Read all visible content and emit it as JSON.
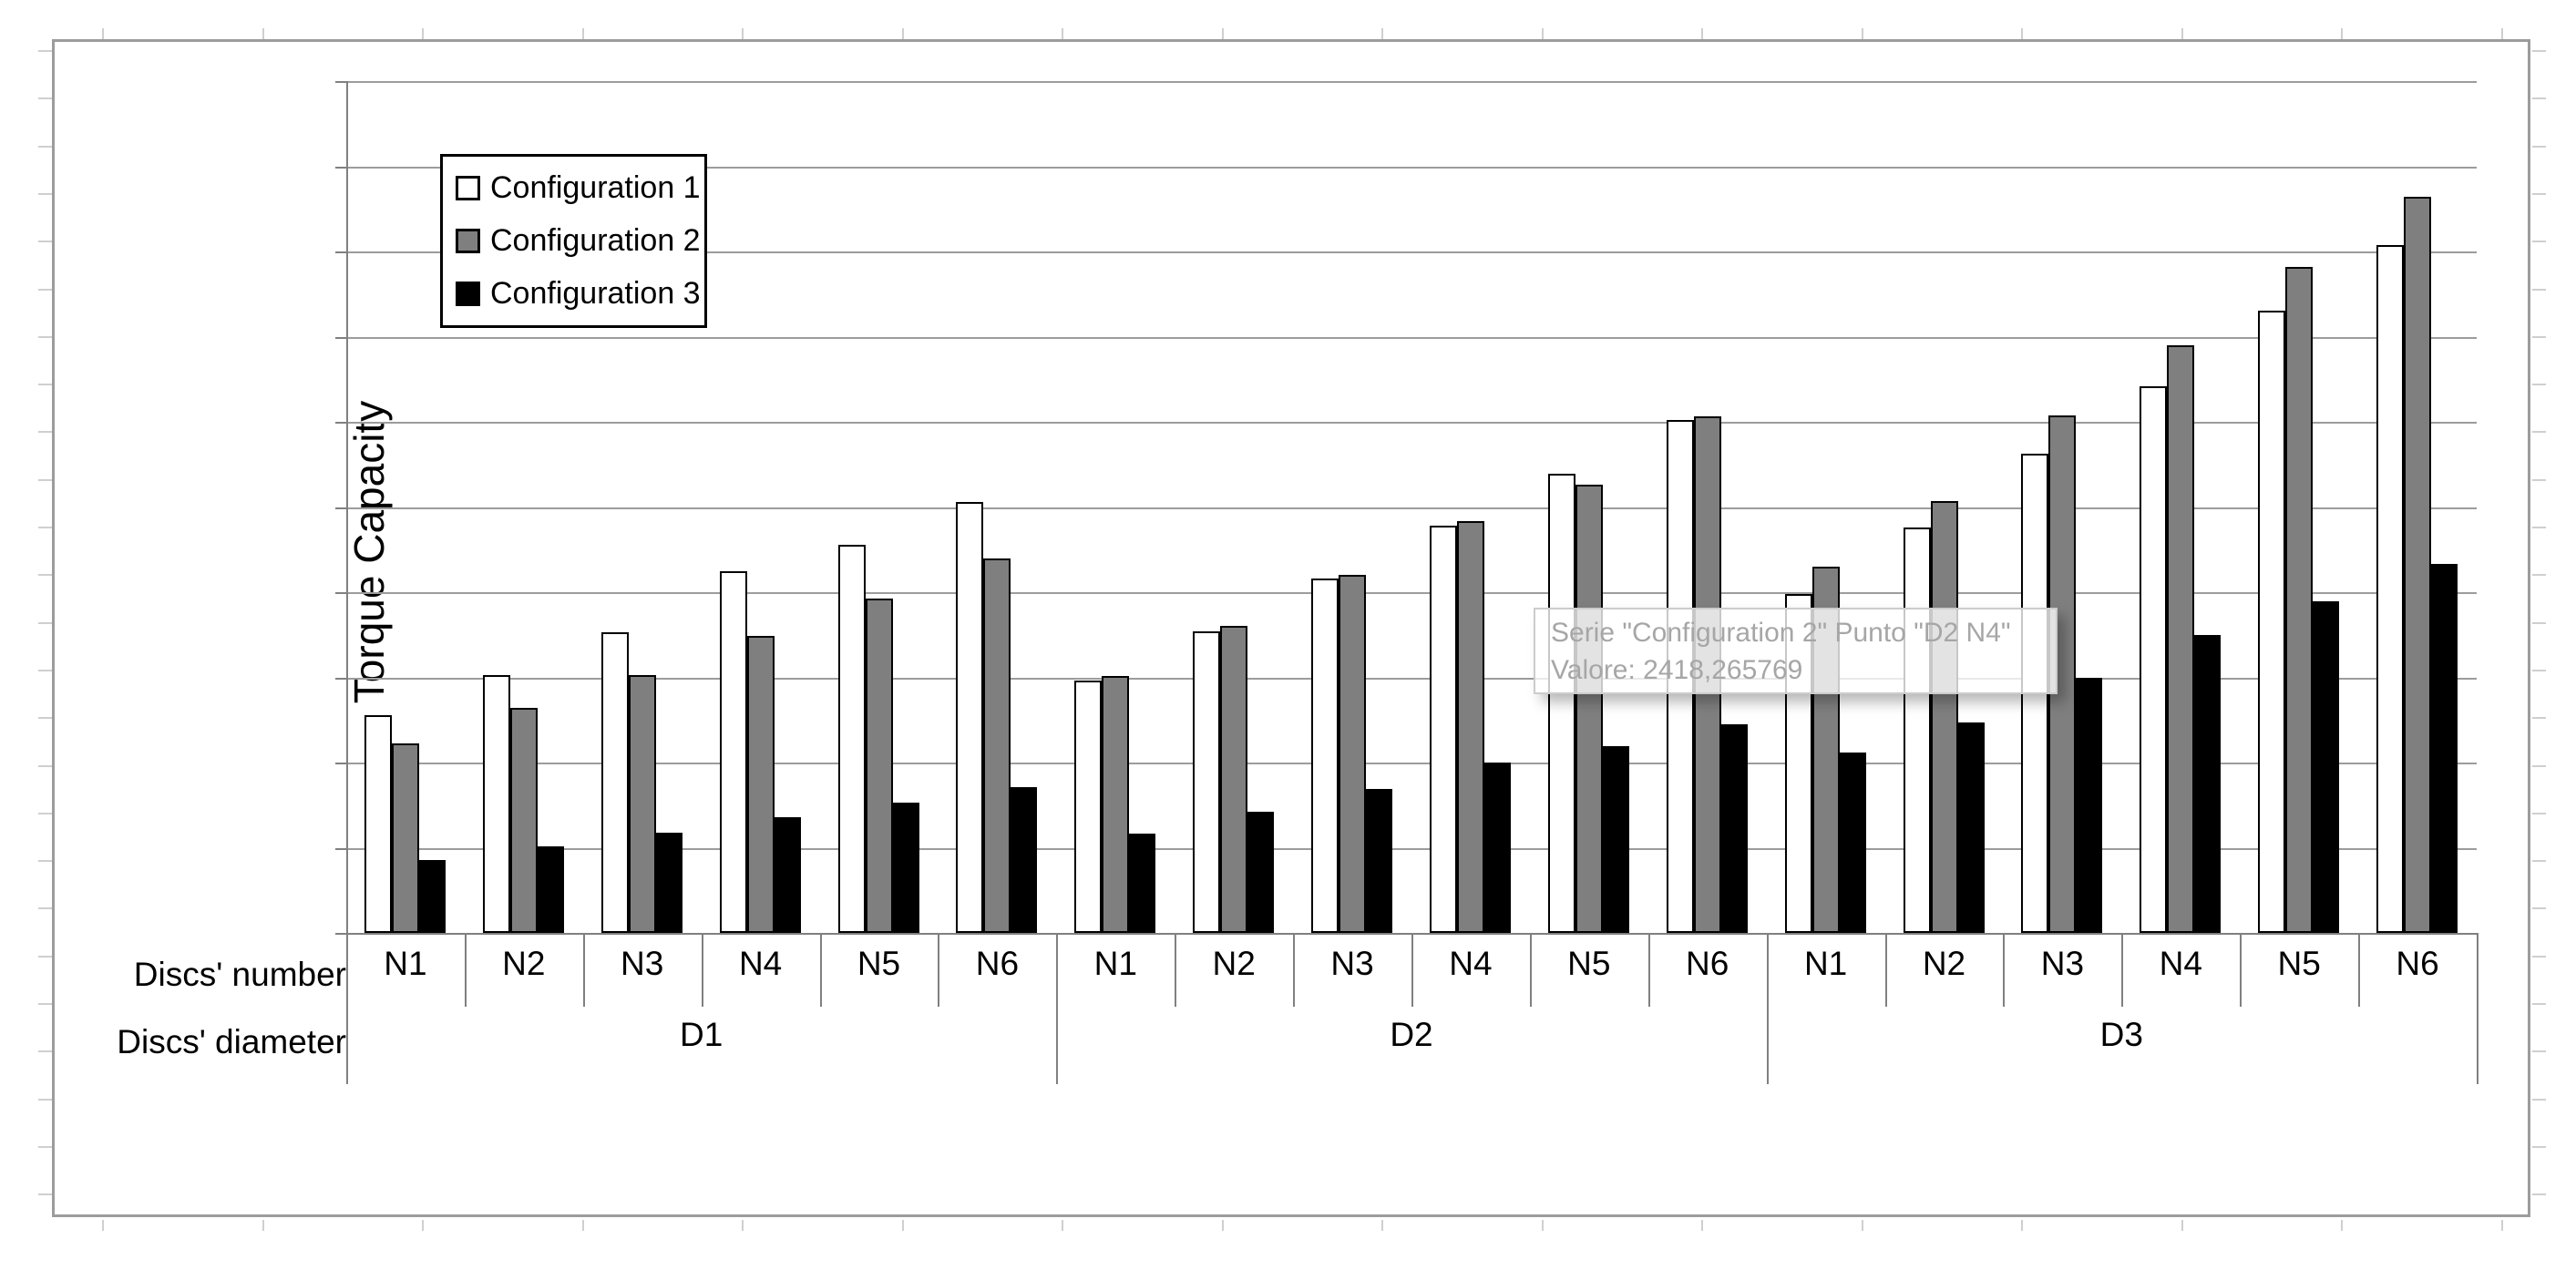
{
  "chart_data": {
    "type": "bar",
    "title": "",
    "ylabel": "Torque Capacity",
    "xlabel": "",
    "ylim": [
      0,
      5000
    ],
    "ytick_interval": 500,
    "gridlines": true,
    "y_tick_labels_visible": false,
    "legend_position": "top-left-inside",
    "x_axis": {
      "level1_label": "Discs' number",
      "level2_label": "Discs' diameter",
      "level1": [
        "N1",
        "N2",
        "N3",
        "N4",
        "N5",
        "N6"
      ],
      "level2": [
        "D1",
        "D2",
        "D3"
      ]
    },
    "series": [
      {
        "name": "Configuration 1",
        "color": "#ffffff",
        "values": {
          "D1": [
            1280,
            1515,
            1765,
            2125,
            2280,
            2530
          ],
          "D2": [
            1480,
            1770,
            2080,
            2390,
            2695,
            3010
          ],
          "D3": [
            1990,
            2380,
            2815,
            3210,
            3655,
            4040
          ]
        }
      },
      {
        "name": "Configuration 2",
        "color": "#7f7f7f",
        "values": {
          "D1": [
            1110,
            1320,
            1515,
            1745,
            1960,
            2200
          ],
          "D2": [
            1510,
            1800,
            2100,
            2418.265769,
            2630,
            3030
          ],
          "D3": [
            2150,
            2535,
            3040,
            3450,
            3910,
            4320
          ]
        }
      },
      {
        "name": "Configuration 3",
        "color": "#000000",
        "values": {
          "D1": [
            430,
            510,
            590,
            680,
            765,
            855
          ],
          "D2": [
            585,
            710,
            845,
            1000,
            1095,
            1225
          ],
          "D3": [
            1060,
            1235,
            1500,
            1750,
            1945,
            2165
          ]
        }
      }
    ]
  },
  "tooltip": {
    "line1": "Serie \"Configuration 2\" Punto \"D2 N4\"",
    "line2": "Valore: 2418,265769"
  },
  "colors": {
    "series_1": "#ffffff",
    "series_2": "#7f7f7f",
    "series_3": "#000000",
    "gridline": "#9c9c9c",
    "axis": "#808080",
    "chart_border": "#9c9c9c",
    "tooltip_text": "#a6a6a6"
  }
}
